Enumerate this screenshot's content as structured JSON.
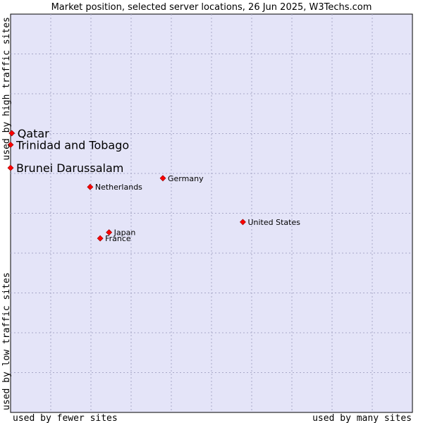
{
  "chart_data": {
    "type": "scatter",
    "title": "Market position, selected server locations, 26 Jun 2025, W3Techs.com",
    "xlabel_left": "used by fewer sites",
    "xlabel_right": "used by many sites",
    "ylabel_bottom": "used by low traffic sites",
    "ylabel_top": "used by high traffic sites",
    "xlim": [
      0,
      100
    ],
    "ylim": [
      0,
      100
    ],
    "grid": true,
    "point_color": "#ff0000",
    "background_color": "#e4e4f8",
    "points": [
      {
        "label": "Qatar",
        "x": 0.3,
        "y": 70.1,
        "highlight": true
      },
      {
        "label": "Trinidad and Tobago",
        "x": 0.0,
        "y": 67.2,
        "highlight": true
      },
      {
        "label": "Brunei Darussalam",
        "x": 0.0,
        "y": 61.4,
        "highlight": true
      },
      {
        "label": "Germany",
        "x": 37.9,
        "y": 58.8,
        "highlight": false
      },
      {
        "label": "Netherlands",
        "x": 19.8,
        "y": 56.6,
        "highlight": false
      },
      {
        "label": "United States",
        "x": 57.8,
        "y": 47.8,
        "highlight": false
      },
      {
        "label": "Japan",
        "x": 24.5,
        "y": 45.2,
        "highlight": false
      },
      {
        "label": "France",
        "x": 22.3,
        "y": 43.7,
        "highlight": false
      }
    ]
  }
}
